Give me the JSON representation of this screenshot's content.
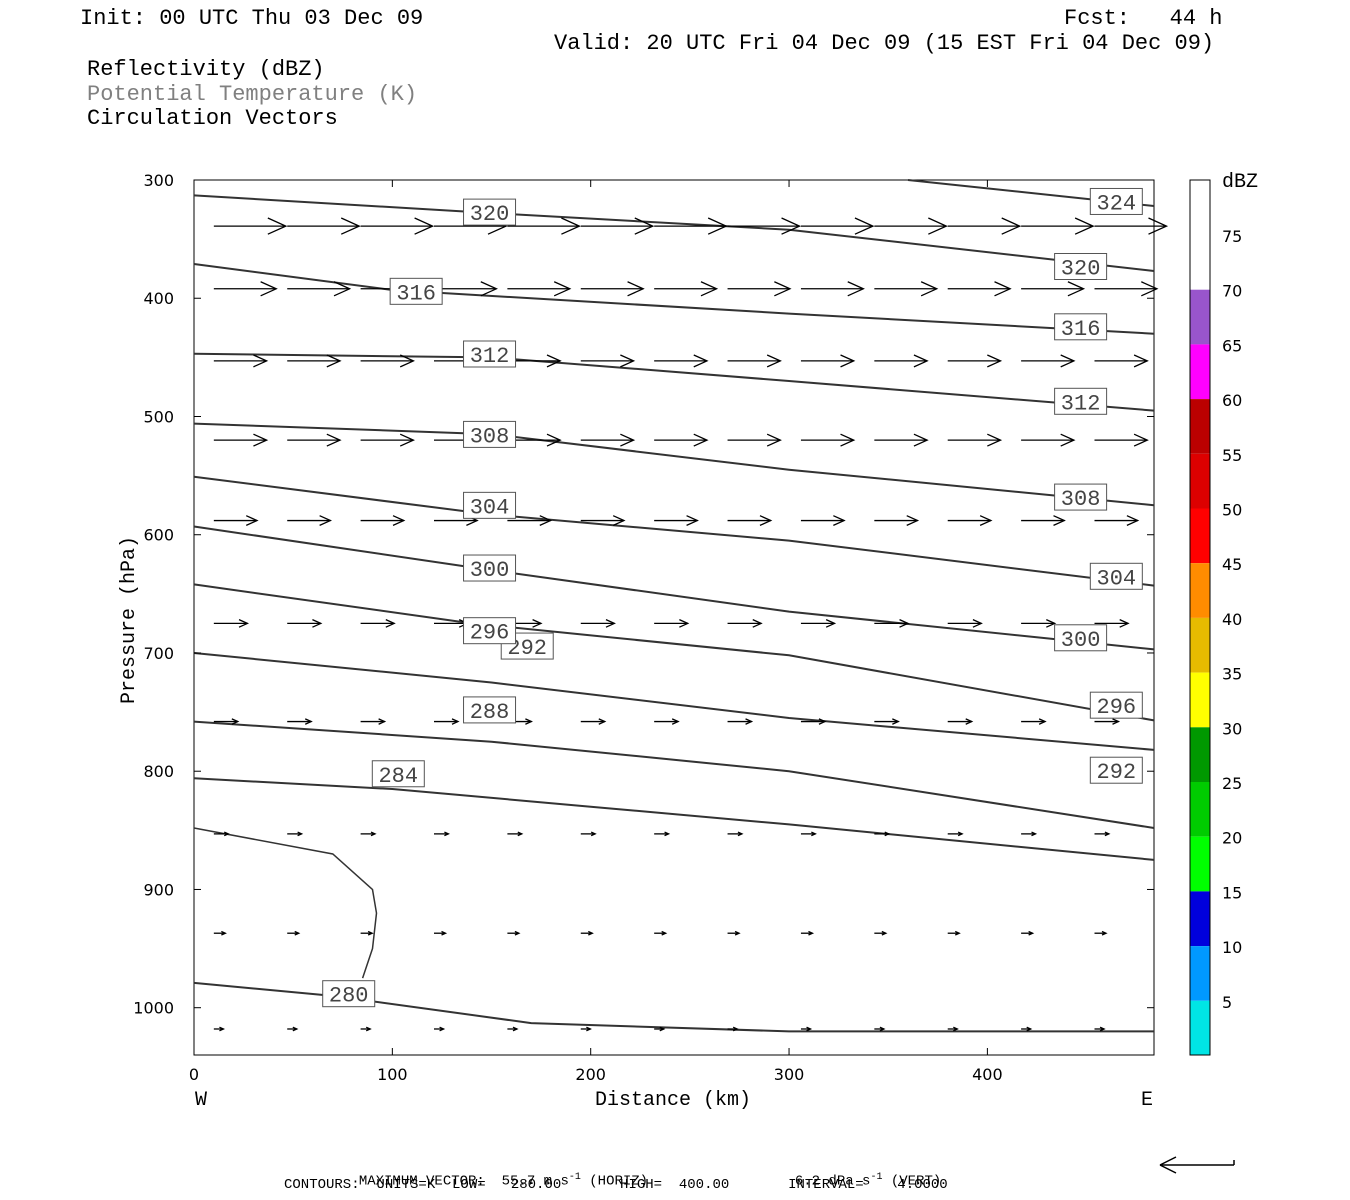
{
  "header": {
    "init": "Init: 00 UTC Thu 03 Dec 09",
    "fcst": "Fcst:   44 h",
    "valid": "Valid: 20 UTC Fri 04 Dec 09 (15 EST Fri 04 Dec 09)",
    "fields": [
      {
        "label": "Reflectivity (dBZ)",
        "color": "#000000"
      },
      {
        "label": "Potential Temperature (K)",
        "color": "#808080"
      },
      {
        "label": "Circulation Vectors",
        "color": "#000000"
      }
    ]
  },
  "footer": {
    "line1": "MAXIMUM VECTOR:  55.7 m s",
    "line1_sup": "-1",
    "line1_b": " (HORIZ)",
    "line1_vert": "6.2 dPa s",
    "line1_vert_sup": "-1",
    "line1_vert_b": " (VERT)",
    "line2": "CONTOURS:  UNITS=K  LOW=   280.00       HIGH=  400.00       INTERVAL=    4.0000"
  },
  "chart_data": {
    "type": "cross-section",
    "xlabel": "Distance (km)",
    "ylabel": "Pressure (hPa)",
    "x_range": [
      0,
      484
    ],
    "y_range": [
      300,
      1040
    ],
    "x_ticks": [
      0,
      100,
      200,
      300,
      400
    ],
    "y_ticks": [
      300,
      400,
      500,
      600,
      700,
      800,
      900,
      1000
    ],
    "x_end_labels": {
      "left": "W",
      "right": "E"
    },
    "contours": [
      {
        "value": 280,
        "points": [
          [
            0,
            979
          ],
          [
            70,
            990
          ],
          [
            170,
            1013
          ],
          [
            300,
            1020
          ],
          [
            484,
            1020
          ]
        ],
        "label_at": [
          78,
          989
        ]
      },
      {
        "value": 284,
        "points": [
          [
            0,
            806
          ],
          [
            100,
            815
          ],
          [
            200,
            830
          ],
          [
            300,
            845
          ],
          [
            484,
            875
          ]
        ],
        "label_at": [
          103,
          803
        ]
      },
      {
        "value": 288,
        "points": [
          [
            0,
            758
          ],
          [
            150,
            775
          ],
          [
            300,
            800
          ],
          [
            484,
            848
          ]
        ],
        "label_at": [
          149,
          749
        ]
      },
      {
        "value": 292,
        "points": [
          [
            0,
            700
          ],
          [
            150,
            725
          ],
          [
            300,
            755
          ],
          [
            484,
            782
          ]
        ],
        "label_at": [
          168,
          695
        ]
      },
      {
        "value": 296,
        "points": [
          [
            0,
            642
          ],
          [
            140,
            675
          ],
          [
            300,
            702
          ],
          [
            484,
            757
          ]
        ],
        "label_at": [
          149,
          682
        ]
      },
      {
        "value": 300,
        "points": [
          [
            0,
            593
          ],
          [
            150,
            630
          ],
          [
            300,
            665
          ],
          [
            484,
            697
          ]
        ],
        "label_at": [
          149,
          629
        ]
      },
      {
        "value": 304,
        "points": [
          [
            0,
            551
          ],
          [
            150,
            583
          ],
          [
            300,
            605
          ],
          [
            484,
            643
          ]
        ],
        "label_at": [
          149,
          576
        ]
      },
      {
        "value": 308,
        "points": [
          [
            0,
            506
          ],
          [
            150,
            515
          ],
          [
            300,
            545
          ],
          [
            484,
            575
          ]
        ],
        "label_at": [
          149,
          516
        ]
      },
      {
        "value": 312,
        "points": [
          [
            0,
            447
          ],
          [
            150,
            450
          ],
          [
            300,
            470
          ],
          [
            484,
            495
          ]
        ],
        "label_at": [
          149,
          448
        ]
      },
      {
        "value": 316,
        "points": [
          [
            0,
            371
          ],
          [
            100,
            393
          ],
          [
            300,
            413
          ],
          [
            484,
            430
          ]
        ],
        "label_at": [
          112,
          395
        ]
      },
      {
        "value": 320,
        "points": [
          [
            0,
            313
          ],
          [
            150,
            328
          ],
          [
            300,
            342
          ],
          [
            484,
            377
          ]
        ],
        "label_at": [
          149,
          328
        ]
      },
      {
        "value": 324,
        "points": [
          [
            360,
            300
          ],
          [
            484,
            322
          ]
        ],
        "label_at": [
          465,
          319
        ]
      }
    ],
    "extra_contour_labels": [
      {
        "value": 320,
        "at": [
          447,
          374
        ]
      },
      {
        "value": 316,
        "at": [
          447,
          425
        ]
      },
      {
        "value": 312,
        "at": [
          447,
          488
        ]
      },
      {
        "value": 308,
        "at": [
          447,
          569
        ]
      },
      {
        "value": 304,
        "at": [
          465,
          636
        ]
      },
      {
        "value": 300,
        "at": [
          447,
          688
        ]
      },
      {
        "value": 296,
        "at": [
          465,
          745
        ]
      },
      {
        "value": 292,
        "at": [
          465,
          800
        ]
      }
    ],
    "closed_contour_280": {
      "points": [
        [
          0,
          848
        ],
        [
          70,
          870
        ],
        [
          90,
          900
        ],
        [
          92,
          920
        ],
        [
          90,
          950
        ],
        [
          85,
          975
        ]
      ]
    },
    "vector_rows": [
      {
        "p": 339,
        "len": 0.075
      },
      {
        "p": 392,
        "len": 0.065
      },
      {
        "p": 453,
        "len": 0.055
      },
      {
        "p": 520,
        "len": 0.055
      },
      {
        "p": 588,
        "len": 0.045
      },
      {
        "p": 675,
        "len": 0.035
      },
      {
        "p": 758,
        "len": 0.025
      },
      {
        "p": 853,
        "len": 0.015
      },
      {
        "p": 937,
        "len": 0.012
      },
      {
        "p": 1018,
        "len": 0.01
      }
    ],
    "vector_x": [
      10,
      47,
      84,
      121,
      158,
      195,
      232,
      269,
      306,
      343,
      380,
      417,
      454
    ],
    "colorbar": {
      "label": "dBZ",
      "levels": [
        5,
        10,
        15,
        20,
        25,
        30,
        35,
        40,
        45,
        50,
        55,
        60,
        65,
        70,
        75
      ],
      "colors": [
        "#ffffff",
        "#00e5e5",
        "#0099ff",
        "#0000dd",
        "#00ff00",
        "#00cc00",
        "#009900",
        "#ffff00",
        "#e6bb00",
        "#ff8c00",
        "#ff0000",
        "#dd0000",
        "#bb0000",
        "#ff00ff",
        "#9955cc",
        "#ffffff"
      ]
    },
    "ref_arrow": {
      "direction": "left"
    }
  }
}
